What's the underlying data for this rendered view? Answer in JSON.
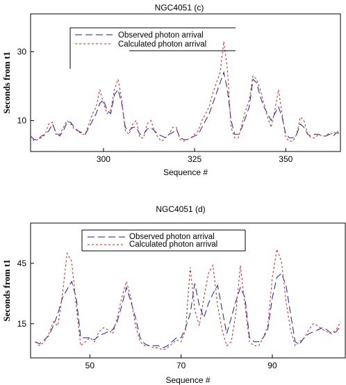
{
  "chart_data": [
    {
      "type": "line",
      "title": "NGC4051 (c)",
      "xlabel": "Sequence #",
      "ylabel": "Seconds from t1",
      "xlim": [
        280,
        365
      ],
      "ylim": [
        1,
        41
      ],
      "xticks": [
        300,
        325,
        350
      ],
      "yticks": [
        10,
        30
      ],
      "legend_position": "top-left",
      "x": [
        280,
        281,
        282,
        283,
        284,
        285,
        286,
        287,
        288,
        289,
        290,
        291,
        292,
        293,
        294,
        295,
        296,
        297,
        298,
        299,
        300,
        301,
        302,
        303,
        304,
        305,
        306,
        307,
        308,
        309,
        310,
        311,
        312,
        313,
        314,
        315,
        316,
        317,
        318,
        319,
        320,
        321,
        322,
        323,
        324,
        325,
        326,
        327,
        328,
        329,
        330,
        331,
        332,
        333,
        334,
        335,
        336,
        337,
        338,
        339,
        340,
        341,
        342,
        343,
        344,
        345,
        346,
        347,
        348,
        349,
        350,
        351,
        352,
        353,
        354,
        355,
        356,
        357,
        358,
        359,
        360,
        361,
        362,
        363,
        364,
        365
      ],
      "series": [
        {
          "name": "Observed photon arrival",
          "color": "#1a1aa8",
          "dash": "10,5",
          "values": [
            5.5,
            4.5,
            4.5,
            5.5,
            6,
            7,
            9,
            6.5,
            5.5,
            7,
            9.5,
            9.5,
            8,
            7,
            6.5,
            6,
            8,
            10,
            12,
            15,
            16,
            13,
            12,
            17.5,
            19,
            15,
            8,
            7,
            8,
            8,
            6,
            6,
            7.5,
            8,
            7,
            6,
            5.5,
            5,
            6,
            6.5,
            7.5,
            5,
            4.5,
            4.5,
            5,
            5.5,
            6,
            8,
            10,
            12,
            15,
            18,
            21,
            24,
            19,
            10,
            6,
            6,
            8,
            11,
            14,
            22,
            21,
            17,
            14,
            12,
            10,
            12,
            14,
            11,
            6,
            5,
            5,
            6,
            9,
            8,
            6,
            5.5,
            6,
            6,
            5.5,
            5.5,
            6,
            5.5,
            6.5,
            6
          ]
        },
        {
          "name": "Calculated photon arrival",
          "color": "#dd1c1c",
          "dash": "3,3",
          "values": [
            5.5,
            4,
            4.5,
            5,
            6,
            9,
            9.5,
            6,
            6,
            8,
            10,
            9,
            7.5,
            7,
            6,
            6,
            9,
            12,
            14,
            19,
            15,
            12,
            13,
            19,
            22,
            16,
            7,
            6,
            9,
            10,
            5,
            5,
            9,
            10,
            7,
            5,
            4,
            5,
            6,
            8,
            8,
            4.5,
            4,
            4.5,
            5,
            6,
            7,
            10,
            12,
            14,
            18,
            21,
            24,
            33,
            25,
            8,
            5,
            5,
            9,
            13,
            16,
            23,
            22,
            19,
            15,
            11,
            8,
            13,
            19,
            12,
            5,
            4,
            4,
            6,
            11,
            10,
            6,
            5,
            5,
            6,
            5.5,
            5.5,
            6.5,
            6,
            7,
            6
          ]
        }
      ]
    },
    {
      "type": "line",
      "title": "NGC4051 (d)",
      "xlabel": "Sequence #",
      "ylabel": "Seconds from t1",
      "xlim": [
        37,
        106
      ],
      "ylim": [
        -2,
        65
      ],
      "xticks": [
        50,
        70,
        90
      ],
      "yticks": [
        15,
        45
      ],
      "legend_position": "top-left",
      "x": [
        38,
        39,
        40,
        41,
        42,
        43,
        44,
        45,
        46,
        47,
        48,
        49,
        50,
        51,
        52,
        53,
        54,
        55,
        56,
        57,
        58,
        59,
        60,
        61,
        62,
        63,
        64,
        65,
        66,
        67,
        68,
        69,
        70,
        71,
        72,
        73,
        74,
        75,
        76,
        77,
        78,
        79,
        80,
        81,
        82,
        83,
        84,
        85,
        86,
        87,
        88,
        89,
        90,
        91,
        92,
        93,
        94,
        95,
        96,
        97,
        98,
        99,
        100,
        101,
        102,
        103,
        104,
        105
      ],
      "series": [
        {
          "name": "Observed photon arrival",
          "color": "#1a1aa8",
          "dash": "10,5",
          "values": [
            6,
            5,
            7,
            9,
            14,
            20,
            28,
            32,
            36,
            28,
            8,
            8,
            8,
            7,
            9,
            10,
            11,
            12,
            16,
            24,
            33,
            26,
            18,
            8,
            5,
            4,
            4,
            4,
            3,
            4,
            6,
            8,
            8,
            13,
            20,
            35,
            24,
            18,
            25,
            30,
            34,
            22,
            10,
            18,
            26,
            33,
            28,
            8,
            6,
            6,
            8,
            12,
            28,
            38,
            40,
            34,
            20,
            6,
            5,
            8,
            10,
            11,
            12,
            13,
            12,
            10,
            11,
            14
          ]
        },
        {
          "name": "Calculated photon arrival",
          "color": "#dd1c1c",
          "dash": "3,3",
          "values": [
            6,
            4,
            6,
            10,
            16,
            14,
            30,
            50,
            46,
            24,
            4,
            6,
            8,
            6,
            11,
            13,
            12,
            10,
            18,
            28,
            36,
            28,
            14,
            6,
            4,
            4,
            3,
            3,
            2,
            3,
            5,
            7,
            6,
            12,
            43,
            22,
            14,
            28,
            40,
            44,
            24,
            12,
            4,
            6,
            20,
            44,
            24,
            6,
            4,
            4,
            8,
            14,
            38,
            52,
            46,
            26,
            12,
            4,
            6,
            8,
            12,
            15,
            14,
            12,
            11,
            10,
            12,
            16
          ]
        }
      ]
    }
  ]
}
